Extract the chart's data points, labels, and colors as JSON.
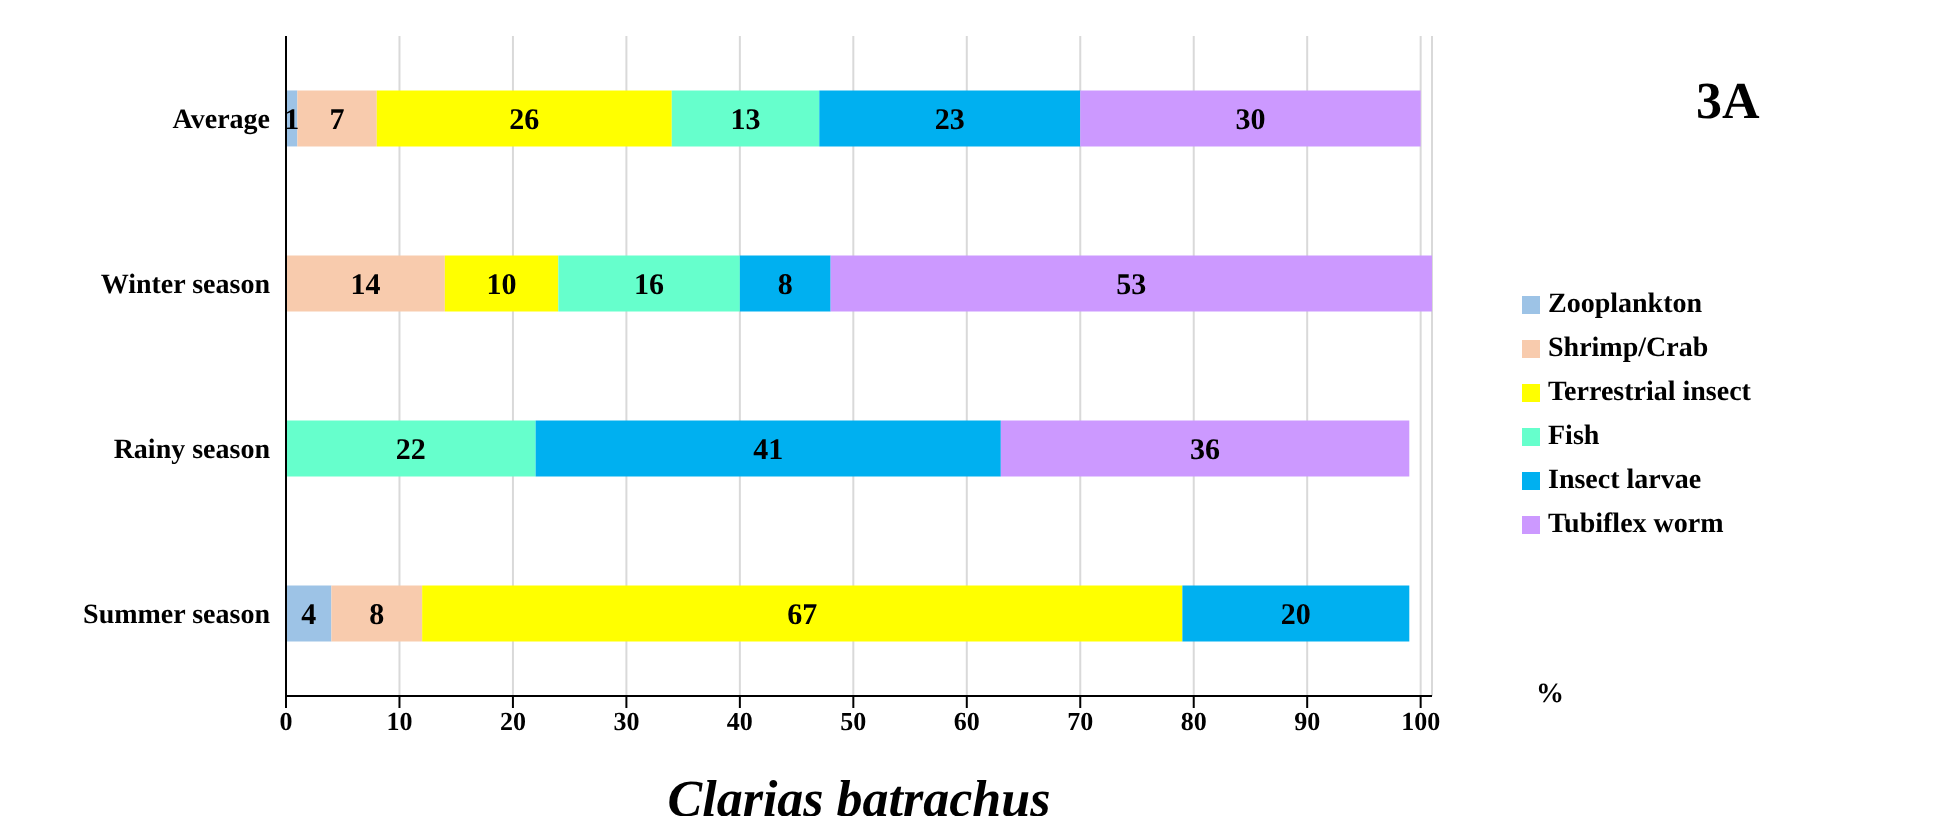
{
  "chart_data": {
    "type": "bar",
    "orientation": "horizontal",
    "stacked": true,
    "title": "3A",
    "xlabel": "Clarias batrachus",
    "annotations": [
      "%"
    ],
    "categories": [
      "Average",
      "Winter season",
      "Rainy season",
      "Summer season"
    ],
    "series": [
      {
        "name": "Zooplankton",
        "color": "#9dc3e6",
        "values": [
          1,
          null,
          null,
          4
        ]
      },
      {
        "name": "Shrimp/Crab",
        "color": "#f8cbad",
        "values": [
          7,
          14,
          null,
          8
        ]
      },
      {
        "name": "Terrestrial insect",
        "color": "#ffff00",
        "values": [
          26,
          10,
          null,
          67
        ]
      },
      {
        "name": "Fish",
        "color": "#66ffcc",
        "values": [
          13,
          16,
          22,
          null
        ]
      },
      {
        "name": "Insect larvae",
        "color": "#00b0f0",
        "values": [
          23,
          8,
          41,
          20
        ]
      },
      {
        "name": "Tubiflex worm",
        "color": "#cc99ff",
        "values": [
          30,
          53,
          36,
          null
        ]
      }
    ],
    "xlim": [
      0,
      101
    ],
    "xticks": [
      0,
      10,
      20,
      30,
      40,
      50,
      60,
      70,
      80,
      90,
      100
    ],
    "grid": "x",
    "legend": "right",
    "data_labels": true
  }
}
